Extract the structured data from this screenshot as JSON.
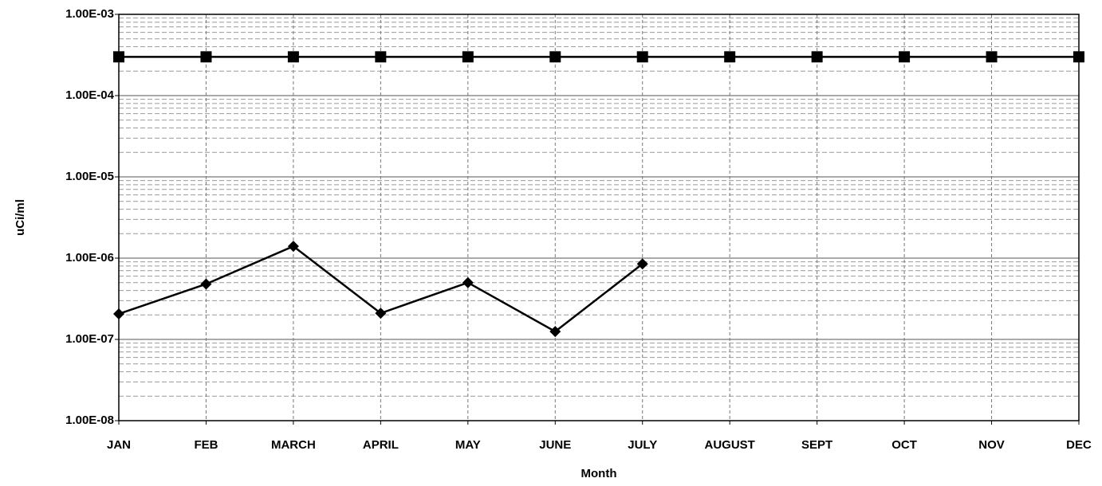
{
  "chart_data": {
    "type": "line",
    "x_label": "Month",
    "y_label": "uCi/ml",
    "categories": [
      "JAN",
      "FEB",
      "MARCH",
      "APRIL",
      "MAY",
      "JUNE",
      "JULY",
      "AUGUST",
      "SEPT",
      "OCT",
      "NOV",
      "DEC"
    ],
    "series": [
      {
        "color": "#000000",
        "marker": "diamond",
        "values": [
          2.06e-07,
          4.8e-07,
          1.4e-06,
          2.1e-07,
          5e-07,
          1.25e-07,
          8.5e-07,
          null,
          null,
          null,
          null,
          null
        ]
      },
      {
        "color": "#000000",
        "marker": "square",
        "values": [
          0.0003,
          0.0003,
          0.0003,
          0.0003,
          0.0003,
          0.0003,
          0.0003,
          0.0003,
          0.0003,
          0.0003,
          0.0003,
          0.0003
        ]
      }
    ],
    "log_y": true,
    "ylim": [
      1e-08,
      0.001
    ],
    "yticks": [
      {
        "value": 1e-08,
        "label": "1.00E-08"
      },
      {
        "value": 1e-07,
        "label": "1.00E-07"
      },
      {
        "value": 1e-06,
        "label": "1.00E-06"
      },
      {
        "value": 1e-05,
        "label": "1.00E-05"
      },
      {
        "value": 0.0001,
        "label": "1.00E-04"
      },
      {
        "value": 0.001,
        "label": "1.00E-03"
      }
    ],
    "grid": true
  }
}
